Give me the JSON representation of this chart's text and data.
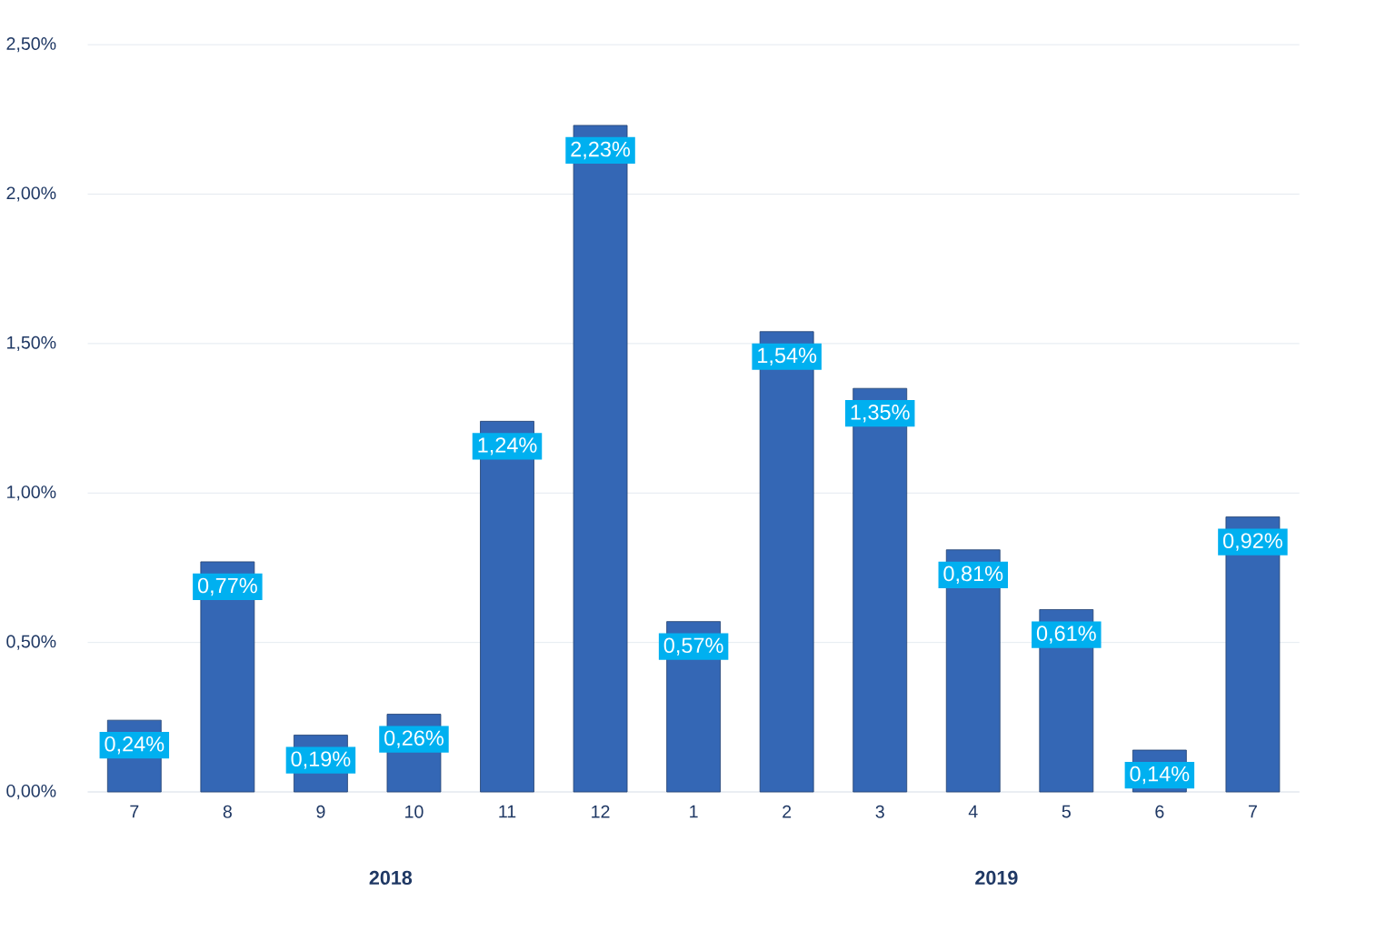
{
  "chart_data": {
    "type": "bar",
    "categories": [
      "7",
      "8",
      "9",
      "10",
      "11",
      "12",
      "1",
      "2",
      "3",
      "4",
      "5",
      "6",
      "7"
    ],
    "values": [
      0.24,
      0.77,
      0.19,
      0.26,
      1.24,
      2.23,
      0.57,
      1.54,
      1.35,
      0.81,
      0.61,
      0.14,
      0.92
    ],
    "value_labels": [
      "0,24%",
      "0,77%",
      "0,19%",
      "0,26%",
      "1,24%",
      "2,23%",
      "0,57%",
      "1,54%",
      "1,35%",
      "0,81%",
      "0,61%",
      "0,14%",
      "0,92%"
    ],
    "color": "#3467b5",
    "ylim": [
      0,
      2.5
    ],
    "yticks": [
      {
        "value": 0,
        "label": "0,00%"
      },
      {
        "value": 0.5,
        "label": "0,50%"
      },
      {
        "value": 1,
        "label": "1,00%"
      },
      {
        "value": 1.5,
        "label": "1,50%"
      },
      {
        "value": 2,
        "label": "2,00%"
      },
      {
        "value": 2.5,
        "label": "2,50%"
      }
    ],
    "grid": "y",
    "annotations": [
      "2018",
      "2019"
    ]
  }
}
